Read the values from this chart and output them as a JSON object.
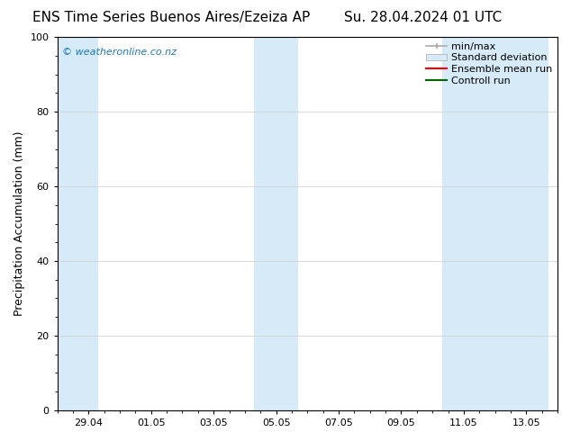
{
  "title_left": "ENS Time Series Buenos Aires/Ezeiza AP",
  "title_right": "Su. 28.04.2024 01 UTC",
  "ylabel": "Precipitation Accumulation (mm)",
  "ylim": [
    0,
    100
  ],
  "yticks": [
    0,
    20,
    40,
    60,
    80,
    100
  ],
  "background_color": "#ffffff",
  "plot_bg_color": "#ffffff",
  "watermark": "© weatheronline.co.nz",
  "watermark_color": "#1a7abf",
  "legend_labels": [
    "min/max",
    "Standard deviation",
    "Ensemble mean run",
    "Controll run"
  ],
  "legend_minmax_color": "#aaaaaa",
  "legend_std_color": "#d6eaf8",
  "legend_ens_color": "#ff0000",
  "legend_ctrl_color": "#006600",
  "shaded_band_color": "#d6eaf8",
  "xtick_labels": [
    "29.04",
    "01.05",
    "03.05",
    "05.05",
    "07.05",
    "09.05",
    "11.05",
    "13.05"
  ],
  "x_min": 0.0,
  "x_max": 16.0,
  "shaded_regions": [
    [
      0.0,
      1.3
    ],
    [
      6.3,
      7.0
    ],
    [
      7.0,
      7.7
    ],
    [
      12.3,
      13.0
    ],
    [
      13.0,
      15.7
    ]
  ],
  "xtick_positions": [
    1.0,
    3.0,
    5.0,
    7.0,
    9.0,
    11.0,
    13.0,
    15.0
  ],
  "title_fontsize": 11,
  "ylabel_fontsize": 9,
  "tick_fontsize": 8,
  "watermark_fontsize": 8,
  "legend_fontsize": 8
}
